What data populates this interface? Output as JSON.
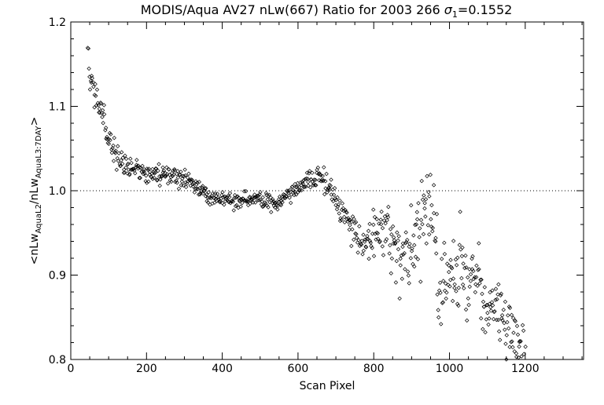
{
  "chart_data": {
    "type": "scatter",
    "title": {
      "prefix": "MODIS/Aqua AV27 nLw(667) Ratio for 2003 266 ",
      "sigma": "σ",
      "sigma_sub": "1",
      "suffix": "=0.1552"
    },
    "xlabel": "Scan Pixel",
    "ylabel": {
      "open": "<nLw",
      "sub1": "AquaL2",
      "mid": "/nLw",
      "sub2": "AquaL3:7DAY",
      "close": ">"
    },
    "xlim": [
      0,
      1354
    ],
    "ylim": [
      0.8,
      1.2
    ],
    "xticks": [
      0,
      200,
      400,
      600,
      800,
      1000,
      1200
    ],
    "xtick_labels": [
      "0",
      "200",
      "400",
      "600",
      "800",
      "1000",
      "1200"
    ],
    "yticks": [
      0.8,
      0.9,
      1.0,
      1.1,
      1.2
    ],
    "ytick_labels": [
      "0.8",
      "0.9",
      "1.0",
      "1.1",
      "1.2"
    ],
    "reference_line": 1.0,
    "marker": "diamond",
    "trend": [
      [
        45,
        1.16
      ],
      [
        50,
        1.13
      ],
      [
        60,
        1.115
      ],
      [
        70,
        1.105
      ],
      [
        80,
        1.1
      ],
      [
        90,
        1.085
      ],
      [
        100,
        1.06
      ],
      [
        110,
        1.05
      ],
      [
        120,
        1.045
      ],
      [
        130,
        1.04
      ],
      [
        150,
        1.03
      ],
      [
        170,
        1.025
      ],
      [
        200,
        1.02
      ],
      [
        230,
        1.02
      ],
      [
        260,
        1.018
      ],
      [
        300,
        1.015
      ],
      [
        320,
        1.01
      ],
      [
        340,
        1.0
      ],
      [
        370,
        0.995
      ],
      [
        400,
        0.99
      ],
      [
        430,
        0.988
      ],
      [
        470,
        0.988
      ],
      [
        500,
        0.99
      ],
      [
        540,
        0.985
      ],
      [
        560,
        0.99
      ],
      [
        590,
        1.0
      ],
      [
        620,
        1.01
      ],
      [
        650,
        1.018
      ],
      [
        660,
        1.02
      ],
      [
        680,
        1.005
      ],
      [
        700,
        0.99
      ],
      [
        720,
        0.975
      ],
      [
        740,
        0.96
      ],
      [
        760,
        0.945
      ],
      [
        780,
        0.937
      ],
      [
        800,
        0.95
      ],
      [
        820,
        0.96
      ],
      [
        830,
        0.955
      ],
      [
        850,
        0.935
      ],
      [
        870,
        0.925
      ],
      [
        890,
        0.935
      ],
      [
        910,
        0.945
      ],
      [
        930,
        0.96
      ],
      [
        940,
        0.99
      ],
      [
        945,
        1.0
      ],
      [
        955,
        0.97
      ],
      [
        970,
        0.9
      ],
      [
        985,
        0.885
      ],
      [
        1000,
        0.9
      ],
      [
        1020,
        0.905
      ],
      [
        1040,
        0.91
      ],
      [
        1060,
        0.895
      ],
      [
        1080,
        0.88
      ],
      [
        1100,
        0.87
      ],
      [
        1120,
        0.855
      ],
      [
        1140,
        0.845
      ],
      [
        1160,
        0.835
      ],
      [
        1180,
        0.822
      ],
      [
        1200,
        0.81
      ]
    ],
    "noise": [
      [
        45,
        0.01
      ],
      [
        100,
        0.01
      ],
      [
        150,
        0.006
      ],
      [
        350,
        0.005
      ],
      [
        600,
        0.005
      ],
      [
        700,
        0.008
      ],
      [
        780,
        0.012
      ],
      [
        950,
        0.03
      ],
      [
        1200,
        0.015
      ]
    ],
    "point_count": 760,
    "seed": 266
  }
}
